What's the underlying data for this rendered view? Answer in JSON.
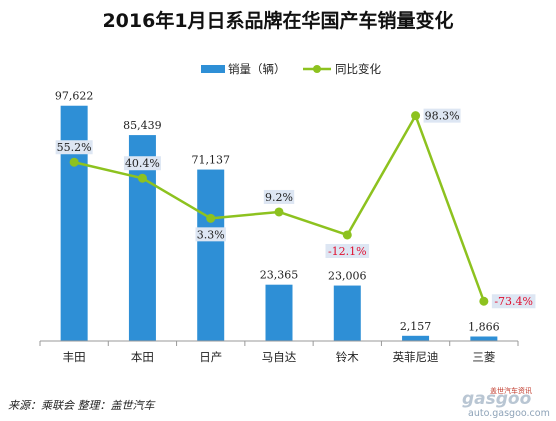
{
  "chart_data": {
    "type": "bar",
    "title": "2016年1月日系品牌在华国产车销量变化",
    "categories": [
      "丰田",
      "本田",
      "日产",
      "马自达",
      "铃木",
      "英菲尼迪",
      "三菱"
    ],
    "series": [
      {
        "name": "销量（辆）",
        "type": "bar",
        "color": "#2e8fd6",
        "values": [
          97622,
          85439,
          71137,
          23365,
          23006,
          2157,
          1866
        ],
        "labels": [
          "97,622",
          "85,439",
          "71,137",
          "23,365",
          "23,006",
          "2,157",
          "1,866"
        ]
      },
      {
        "name": "同比变化",
        "type": "line",
        "color": "#8dc21f",
        "values": [
          55.2,
          40.4,
          3.3,
          9.2,
          -12.1,
          98.3,
          -73.4
        ],
        "labels": [
          "55.2%",
          "40.4%",
          "3.3%",
          "9.2%",
          "-12.1%",
          "98.3%",
          "-73.4%"
        ]
      }
    ],
    "ylim": [
      0,
      100000
    ],
    "y2lim": [
      -100,
      110
    ],
    "grid": false,
    "legend": "top-center",
    "negative_label_color": "#e0102f",
    "label_box_color": "#dde6f3"
  },
  "source": "来源：乘联会  整理：盖世汽车",
  "watermark": {
    "logo": "gasgoo",
    "brand_cn": "盖世汽车资讯",
    "url": "auto.gasgoo.com"
  }
}
